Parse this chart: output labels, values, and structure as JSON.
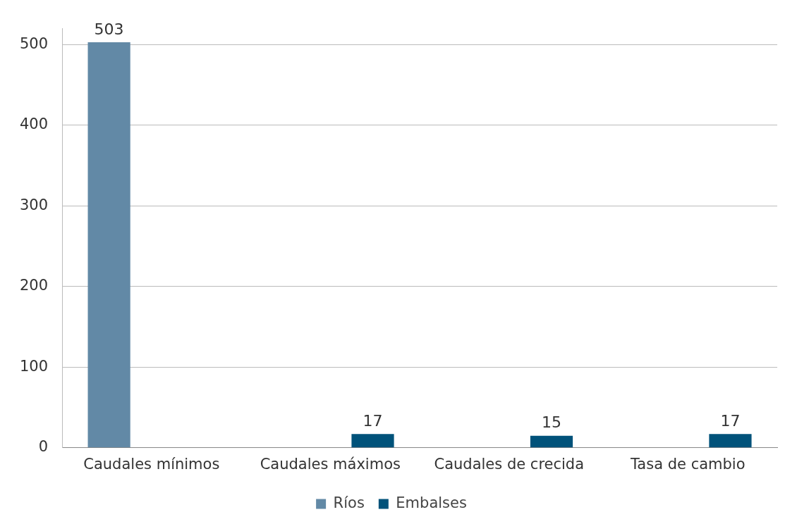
{
  "chart_data": {
    "type": "bar",
    "categories": [
      "Caudales mínimos",
      "Caudales máximos",
      "Caudales de crecida",
      "Tasa de cambio"
    ],
    "series": [
      {
        "name": "Ríos",
        "color": "#6289a6",
        "values": [
          503,
          null,
          null,
          null
        ]
      },
      {
        "name": "Embalses",
        "color": "#00527a",
        "values": [
          null,
          17,
          15,
          17
        ]
      }
    ],
    "ylim": [
      0,
      520
    ],
    "yticks": [
      0,
      100,
      200,
      300,
      400,
      500
    ],
    "grid": "y",
    "legend": "bottom",
    "data_labels": true
  }
}
